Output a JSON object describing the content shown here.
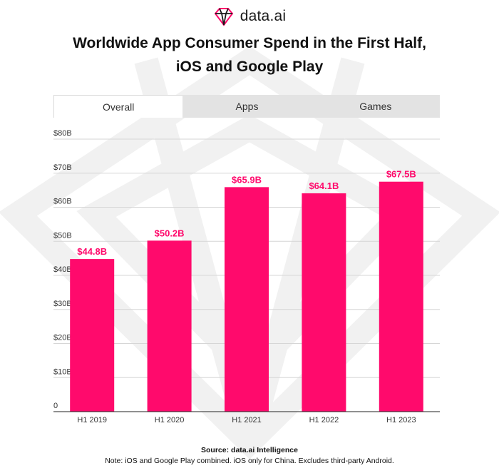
{
  "brand": {
    "name": "data.ai",
    "logo_icon": "diamond-logo-icon"
  },
  "title_lines": [
    "Worldwide App Consumer Spend in the First Half,",
    "iOS and Google Play"
  ],
  "tabs": [
    {
      "label": "Overall",
      "active": true
    },
    {
      "label": "Apps",
      "active": false
    },
    {
      "label": "Games",
      "active": false
    }
  ],
  "colors": {
    "bar": "#ff0a6c",
    "label": "#ff0a6c",
    "grid": "#d6d6d6",
    "tab_bg": "#e3e3e3",
    "watermark": "#f1f1f1"
  },
  "chart_data": {
    "type": "bar",
    "title": "Worldwide App Consumer Spend in the First Half, iOS and Google Play",
    "categories": [
      "H1 2019",
      "H1 2020",
      "H1 2021",
      "H1 2022",
      "H1 2023"
    ],
    "values": [
      44.8,
      50.2,
      65.9,
      64.1,
      67.5
    ],
    "value_labels": [
      "$44.8B",
      "$50.2B",
      "$65.9B",
      "$64.1B",
      "$67.5B"
    ],
    "y_ticks": [
      0,
      10,
      20,
      30,
      40,
      50,
      60,
      70,
      80
    ],
    "y_tick_labels": [
      "0",
      "$10B",
      "$20B",
      "$30B",
      "$40B",
      "$50B",
      "$60B",
      "$70B",
      "$80B"
    ],
    "ylim": [
      0,
      80
    ],
    "grid": true,
    "xlabel": "",
    "ylabel": ""
  },
  "footnote": {
    "source": "Source: data.ai Intelligence",
    "note": "Note: iOS and Google Play combined. iOS only for China. Excludes third-party Android."
  }
}
